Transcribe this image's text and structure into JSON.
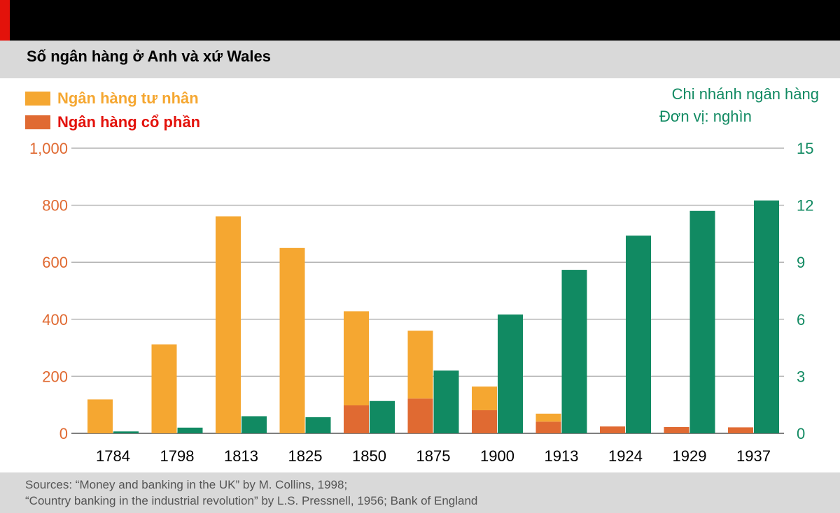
{
  "title": "Số ngân hàng ở Anh và xứ Wales",
  "legend": {
    "private": "Ngân hàng tư nhân",
    "joint_stock": "Ngân hàng cổ phần"
  },
  "right_axis_note": {
    "line1": "Chi nhánh ngân hàng",
    "line2": "Đơn vị: nghìn"
  },
  "sources": {
    "line1": "Sources: “Money and banking in the UK” by M. Collins, 1998;",
    "line2": "“Country banking in the industrial revolution” by L.S. Pressnell, 1956; Bank of England"
  },
  "colors": {
    "private": "#f5a731",
    "joint_stock": "#e06a32",
    "branches": "#118a62",
    "left_axis": "#e06a32",
    "right_axis": "#118a62",
    "private_label": "#f5a731",
    "joint_stock_label": "#e3120b"
  },
  "chart_data": {
    "type": "bar",
    "categories": [
      "1784",
      "1798",
      "1813",
      "1825",
      "1850",
      "1875",
      "1900",
      "1913",
      "1924",
      "1929",
      "1937"
    ],
    "series": [
      {
        "name": "Ngân hàng tư nhân",
        "axis": "left",
        "stack": "banks",
        "values": [
          119,
          312,
          761,
          650,
          330,
          238,
          83,
          28,
          0,
          0,
          0
        ]
      },
      {
        "name": "Ngân hàng cổ phần",
        "axis": "left",
        "stack": "banks",
        "values": [
          0,
          0,
          0,
          0,
          98,
          122,
          81,
          41,
          24,
          22,
          21
        ]
      },
      {
        "name": "Chi nhánh ngân hàng",
        "axis": "right",
        "stack": "branches",
        "values": [
          0.1,
          0.3,
          0.9,
          0.85,
          1.7,
          3.3,
          6.25,
          8.6,
          10.4,
          11.7,
          12.25
        ]
      }
    ],
    "left_axis": {
      "ylim": [
        0,
        1000
      ],
      "ticks": [
        "0",
        "200",
        "400",
        "600",
        "800",
        "1,000"
      ]
    },
    "right_axis": {
      "ylim": [
        0,
        15
      ],
      "ticks": [
        "0",
        "3",
        "6",
        "9",
        "12",
        "15"
      ]
    },
    "grid": true,
    "legend_position": "top-left"
  }
}
